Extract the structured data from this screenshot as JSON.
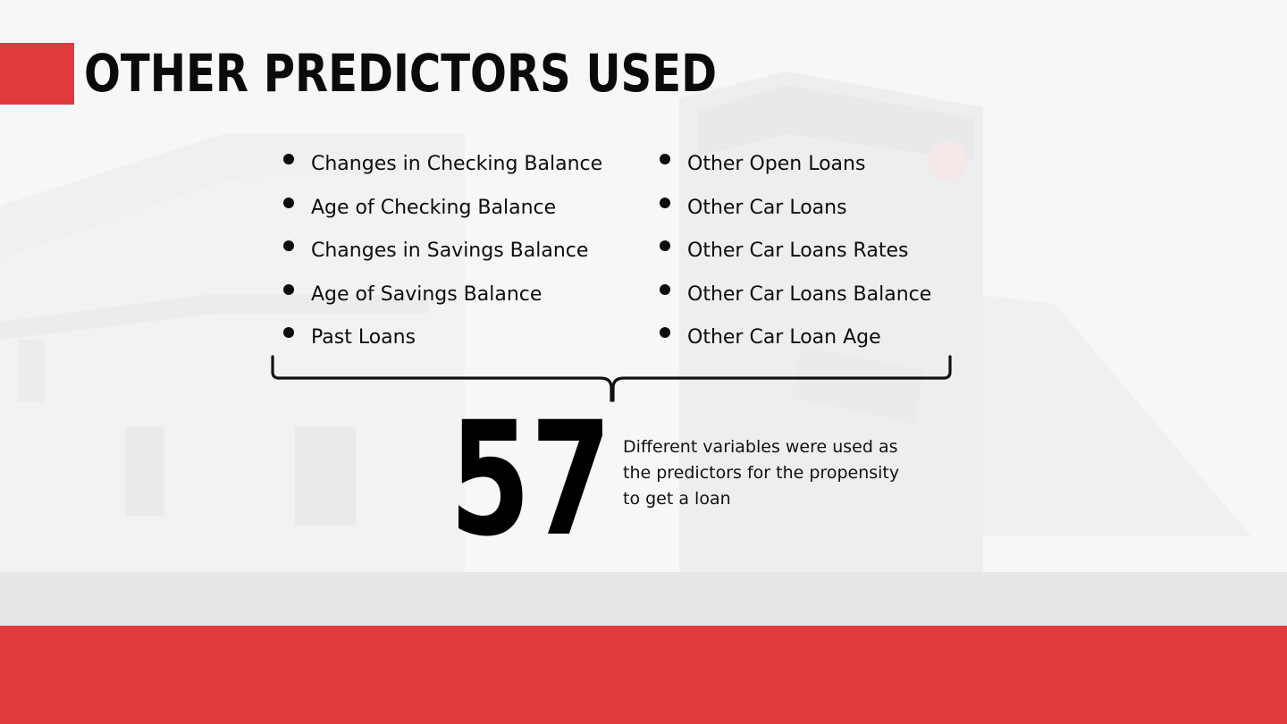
{
  "slide": {
    "title": "OTHER PREDICTORS USED",
    "left_items": [
      "Changes in Checking Balance",
      "Age of Checking Balance",
      "Changes in Savings Balance",
      "Age of Savings Balance",
      "Past Loans"
    ],
    "right_items": [
      "Other Open Loans",
      "Other Car Loans",
      "Other Car Loans Rates",
      "Other Car Loans Balance",
      "Other Car Loan Age"
    ],
    "stat_number": "57",
    "stat_caption": "Different variables were used as the predictors for the propensity to get a loan"
  },
  "colors": {
    "accent_red": "#e0393e",
    "band_gray": "#e6e7e8",
    "text": "#0d0d0d"
  }
}
